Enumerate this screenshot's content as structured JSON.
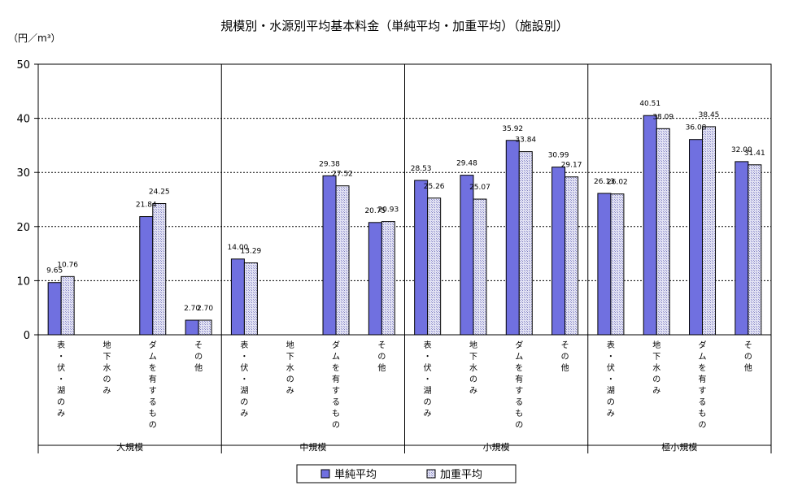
{
  "chart_data": {
    "type": "bar",
    "title": "規模別・水源別平均基本料金（単純平均・加重平均）（施設別）",
    "ylabel": "（円／m³）",
    "ylim": [
      0,
      50
    ],
    "yticks": [
      0,
      10,
      20,
      30,
      40,
      50
    ],
    "grid": true,
    "legend_position": "bottom",
    "groups": [
      {
        "name": "大規模",
        "categories": [
          "表・伏・湖のみ",
          "地下水のみ",
          "ダムを有するもの",
          "その他"
        ]
      },
      {
        "name": "中規模",
        "categories": [
          "表・伏・湖のみ",
          "地下水のみ",
          "ダムを有するもの",
          "その他"
        ]
      },
      {
        "name": "小規模",
        "categories": [
          "表・伏・湖のみ",
          "地下水のみ",
          "ダムを有するもの",
          "その他"
        ]
      },
      {
        "name": "極小規模",
        "categories": [
          "表・伏・湖のみ",
          "地下水のみ",
          "ダムを有するもの",
          "その他"
        ]
      }
    ],
    "series": [
      {
        "name": "単純平均",
        "color": "#7070e0",
        "values": [
          9.65,
          null,
          21.84,
          2.7,
          14.0,
          null,
          29.38,
          20.75,
          28.53,
          29.48,
          35.92,
          30.99,
          26.13,
          40.51,
          36.08,
          32.0
        ],
        "labels": [
          "9.65",
          "",
          "21.84",
          "2.70",
          "14.00",
          "",
          "29.38",
          "20.75",
          "28.53",
          "29.48",
          "35.92",
          "30.99",
          "26.13",
          "40.51",
          "36.08",
          "32.00"
        ]
      },
      {
        "name": "加重平均",
        "color": "#c8c8e6",
        "values": [
          10.76,
          null,
          24.25,
          2.7,
          13.29,
          null,
          27.52,
          20.93,
          25.26,
          25.07,
          33.84,
          29.17,
          26.02,
          38.09,
          38.45,
          31.41
        ],
        "labels": [
          "10.76",
          "",
          "24.25",
          "2.70",
          "13.29",
          "",
          "27.52",
          "20.93",
          "25.26",
          "25.07",
          "33.84",
          "29.17",
          "26.02",
          "38.09",
          "38.45",
          "31.41"
        ]
      }
    ]
  }
}
